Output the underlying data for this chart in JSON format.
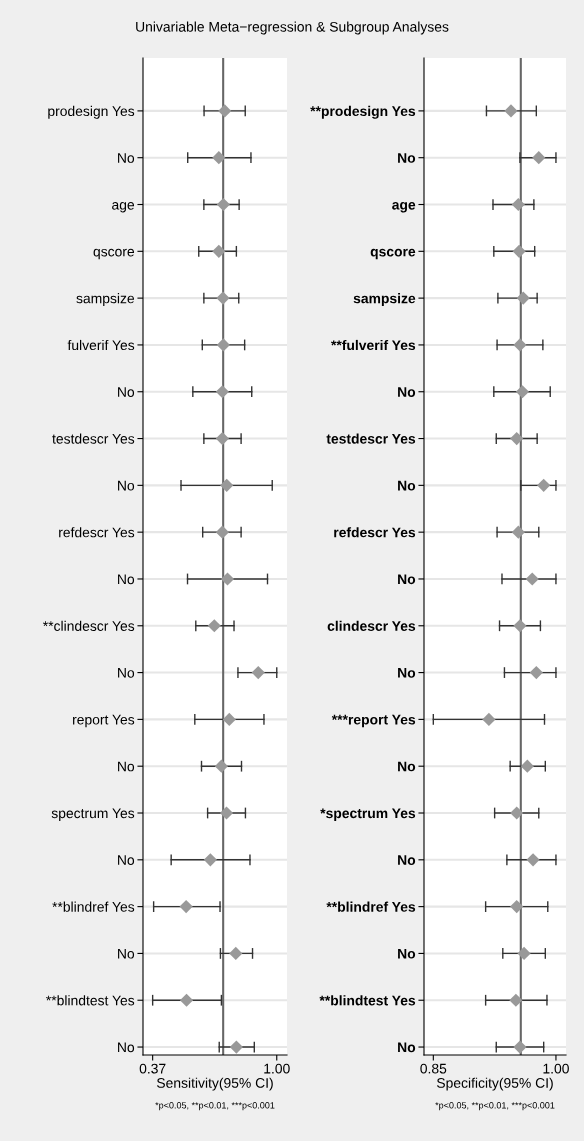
{
  "chart_data": [
    {
      "type": "scatter",
      "orientation": "horizontal",
      "title": "Univariable Meta−regression & Subgroup Analyses",
      "xlabel": "Sensitivity(95% CI)",
      "categories": [
        "prodesign Yes",
        "No",
        "age",
        "qscore",
        "sampsize",
        "fulverif Yes",
        "No",
        "testdescr Yes",
        "No",
        "refdescr Yes",
        "No",
        "**clindescr Yes",
        "No",
        "report Yes",
        "No",
        "spectrum Yes",
        "No",
        "**blindref Yes",
        "No",
        "**blindtest Yes",
        "No"
      ],
      "series": [
        {
          "color": "#999999",
          "values": [
            0.736,
            0.706,
            0.729,
            0.706,
            0.727,
            0.729,
            0.724,
            0.724,
            0.746,
            0.724,
            0.75,
            0.683,
            0.906,
            0.759,
            0.719,
            0.745,
            0.663,
            0.54,
            0.792,
            0.542,
            0.795
          ],
          "errors": [
            [
              0.631,
              0.84
            ],
            [
              0.548,
              0.869
            ],
            [
              0.63,
              0.809
            ],
            [
              0.604,
              0.795
            ],
            [
              0.63,
              0.807
            ],
            [
              0.622,
              0.837
            ],
            [
              0.574,
              0.873
            ],
            [
              0.63,
              0.819
            ],
            [
              0.514,
              0.977
            ],
            [
              0.624,
              0.819
            ],
            [
              0.547,
              0.953
            ],
            [
              0.589,
              0.783
            ],
            [
              0.803,
              1.0
            ],
            [
              0.584,
              0.935
            ],
            [
              0.618,
              0.821
            ],
            [
              0.649,
              0.841
            ],
            [
              0.464,
              0.864
            ],
            [
              0.375,
              0.712
            ],
            [
              0.714,
              0.877
            ],
            [
              0.37,
              0.719
            ],
            [
              0.708,
              0.886
            ]
          ]
        }
      ],
      "marker": "diamond",
      "grid": "y",
      "xlim": [
        0.321,
        1.052
      ],
      "xticks": [
        {
          "value": 0.37,
          "label": "0.37"
        },
        {
          "value": 1.0,
          "label": "1.00"
        }
      ],
      "ref_lines": [
        {
          "axis": "x",
          "value": 0.728,
          "color": "#666666"
        }
      ],
      "annotations": [
        "*p<0.05, **p<0.01, ***p<0.001"
      ]
    },
    {
      "type": "scatter",
      "orientation": "horizontal",
      "xlabel": "Specificity(95% CI)",
      "categories": [
        "**prodesign Yes",
        "No",
        "age",
        "qscore",
        "sampsize",
        "**fulverif Yes",
        "No",
        "testdescr Yes",
        "No",
        "refdescr Yes",
        "No",
        "clindescr Yes",
        "No",
        "***report Yes",
        "No",
        "*spectrum Yes",
        "No",
        "**blindref Yes",
        "No",
        "**blindtest Yes",
        "No"
      ],
      "series": [
        {
          "color": "#999999",
          "values": [
            0.945,
            0.979,
            0.954,
            0.955,
            0.96,
            0.956,
            0.959,
            0.952,
            0.985,
            0.954,
            0.971,
            0.956,
            0.976,
            0.918,
            0.965,
            0.952,
            0.972,
            0.952,
            0.961,
            0.951,
            0.956
          ],
          "errors": [
            [
              0.915,
              0.976
            ],
            [
              0.956,
              1.0
            ],
            [
              0.923,
              0.973
            ],
            [
              0.924,
              0.974
            ],
            [
              0.929,
              0.977
            ],
            [
              0.928,
              0.984
            ],
            [
              0.924,
              0.993
            ],
            [
              0.927,
              0.977
            ],
            [
              0.957,
              1.0
            ],
            [
              0.928,
              0.979
            ],
            [
              0.934,
              1.0
            ],
            [
              0.931,
              0.981
            ],
            [
              0.937,
              1.0
            ],
            [
              0.85,
              0.986
            ],
            [
              0.944,
              0.987
            ],
            [
              0.925,
              0.979
            ],
            [
              0.94,
              1.0
            ],
            [
              0.914,
              0.99
            ],
            [
              0.935,
              0.987
            ],
            [
              0.914,
              0.989
            ],
            [
              0.927,
              0.985
            ]
          ]
        }
      ],
      "marker": "diamond",
      "grid": "y",
      "xlim": [
        0.8386,
        1.0123
      ],
      "xticks": [
        {
          "value": 0.85,
          "label": "0.85"
        },
        {
          "value": 1.0,
          "label": "1.00"
        }
      ],
      "ref_lines": [
        {
          "axis": "x",
          "value": 0.957,
          "color": "#666666"
        }
      ],
      "annotations": [
        "*p<0.05, **p<0.01, ***p<0.001"
      ]
    }
  ]
}
